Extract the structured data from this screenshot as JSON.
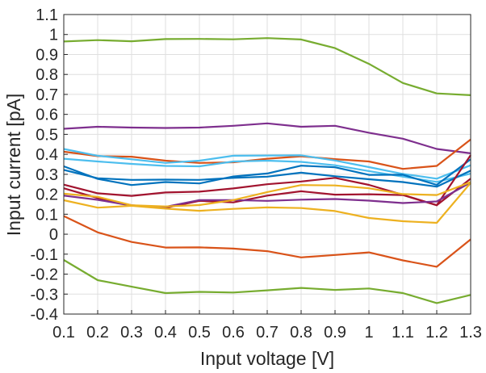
{
  "chart_data": {
    "type": "line",
    "title": "",
    "xlabel": "Input voltage [V]",
    "ylabel": "Input current [pA]",
    "xlim": [
      0.1,
      1.3
    ],
    "ylim": [
      -0.4,
      1.1
    ],
    "grid": true,
    "legend": "none",
    "x": [
      0.1,
      0.2,
      0.3,
      0.4,
      0.5,
      0.6,
      0.7,
      0.8,
      0.9,
      1.0,
      1.1,
      1.2,
      1.3
    ],
    "x_tick_labels": [
      "0.1",
      "0.2",
      "0.3",
      "0.4",
      "0.5",
      "0.6",
      "0.7",
      "0.8",
      "0.9",
      "1",
      "1.1",
      "1.2",
      "1.3"
    ],
    "y_ticks": [
      -0.4,
      -0.3,
      -0.2,
      -0.1,
      0,
      0.1,
      0.2,
      0.3,
      0.4,
      0.5,
      0.6,
      0.7,
      0.8,
      0.9,
      1,
      1.1
    ],
    "y_tick_labels": [
      "-0.4",
      "-0.3",
      "-0.2",
      "-0.1",
      "0",
      "0.1",
      "0.2",
      "0.3",
      "0.4",
      "0.5",
      "0.6",
      "0.7",
      "0.8",
      "0.9",
      "1",
      "1.1"
    ],
    "series": [
      {
        "color": "#77ac30",
        "values": [
          0.965,
          0.972,
          0.966,
          0.977,
          0.978,
          0.976,
          0.982,
          0.975,
          0.932,
          0.853,
          0.757,
          0.705,
          0.696
        ]
      },
      {
        "color": "#7e2f8e",
        "values": [
          0.528,
          0.538,
          0.534,
          0.532,
          0.534,
          0.543,
          0.555,
          0.538,
          0.543,
          0.508,
          0.478,
          0.427,
          0.405
        ]
      },
      {
        "color": "#d95319",
        "values": [
          0.413,
          0.391,
          0.388,
          0.368,
          0.357,
          0.36,
          0.378,
          0.39,
          0.376,
          0.364,
          0.327,
          0.342,
          0.474
        ]
      },
      {
        "color": "#4dbeee",
        "values": [
          0.427,
          0.393,
          0.375,
          0.357,
          0.368,
          0.393,
          0.394,
          0.395,
          0.369,
          0.336,
          0.302,
          0.278,
          0.345
        ]
      },
      {
        "color": "#4dbeee",
        "values": [
          0.378,
          0.364,
          0.352,
          0.342,
          0.34,
          0.364,
          0.368,
          0.362,
          0.345,
          0.316,
          0.288,
          0.262,
          0.303
        ]
      },
      {
        "color": "#0072bd",
        "values": [
          0.34,
          0.277,
          0.246,
          0.261,
          0.254,
          0.289,
          0.304,
          0.343,
          0.335,
          0.297,
          0.298,
          0.247,
          0.375
        ]
      },
      {
        "color": "#0072bd",
        "values": [
          0.322,
          0.28,
          0.272,
          0.273,
          0.272,
          0.282,
          0.288,
          0.308,
          0.29,
          0.275,
          0.261,
          0.238,
          0.318
        ]
      },
      {
        "color": "#a2142f",
        "values": [
          0.248,
          0.205,
          0.192,
          0.209,
          0.213,
          0.229,
          0.25,
          0.264,
          0.282,
          0.247,
          0.197,
          0.145,
          0.278
        ]
      },
      {
        "color": "#a2142f",
        "values": [
          0.23,
          0.181,
          0.145,
          0.132,
          0.167,
          0.159,
          0.193,
          0.215,
          0.198,
          0.2,
          0.196,
          0.145,
          0.396
        ]
      },
      {
        "color": "#7e2f8e",
        "values": [
          0.193,
          0.172,
          0.143,
          0.137,
          0.171,
          0.171,
          0.167,
          0.173,
          0.176,
          0.168,
          0.156,
          0.164,
          0.259
        ]
      },
      {
        "color": "#edb120",
        "values": [
          0.203,
          0.187,
          0.145,
          0.139,
          0.146,
          0.171,
          0.211,
          0.246,
          0.244,
          0.23,
          0.201,
          0.196,
          0.261
        ]
      },
      {
        "color": "#edb120",
        "values": [
          0.17,
          0.133,
          0.142,
          0.128,
          0.117,
          0.127,
          0.134,
          0.131,
          0.116,
          0.081,
          0.065,
          0.057,
          0.257
        ]
      },
      {
        "color": "#d95319",
        "values": [
          0.091,
          0.009,
          -0.039,
          -0.067,
          -0.066,
          -0.072,
          -0.085,
          -0.116,
          -0.104,
          -0.091,
          -0.131,
          -0.163,
          -0.026
        ]
      },
      {
        "color": "#77ac30",
        "values": [
          -0.129,
          -0.23,
          -0.263,
          -0.295,
          -0.289,
          -0.292,
          -0.281,
          -0.269,
          -0.279,
          -0.272,
          -0.295,
          -0.345,
          -0.304
        ]
      }
    ]
  }
}
